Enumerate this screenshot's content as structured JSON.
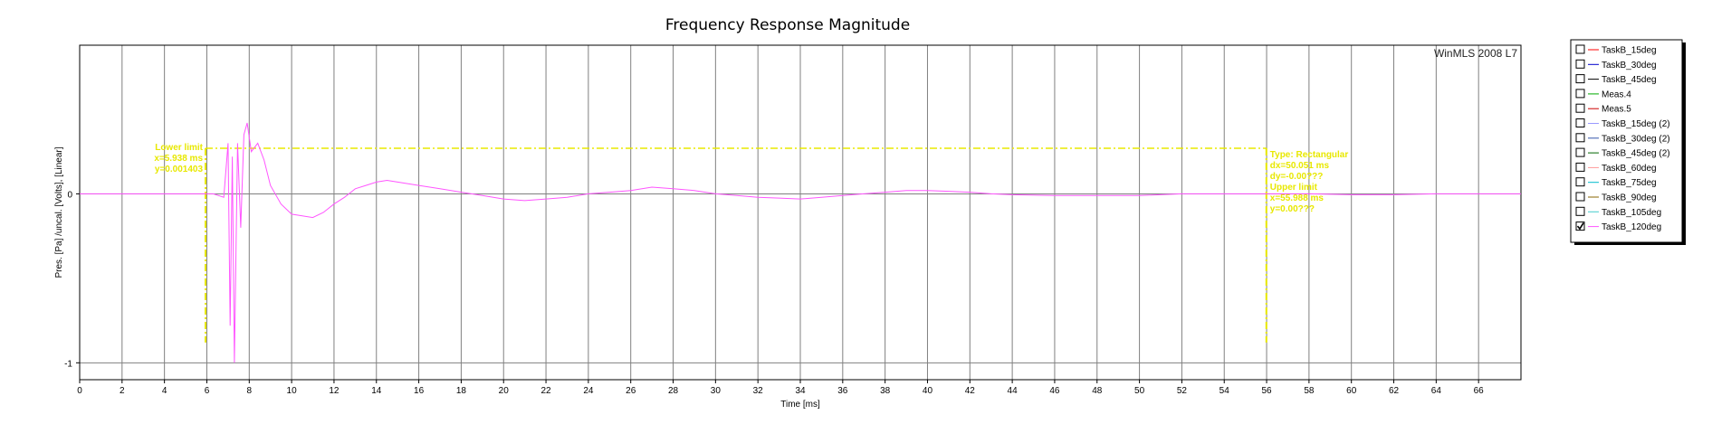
{
  "chart_data": {
    "type": "line",
    "title": "Frequency Response Magnitude",
    "xlabel": "Time [ms]",
    "ylabel": "Pres. [Pa] /uncal. [Volts], [Linear]",
    "xlim": [
      0,
      68
    ],
    "ylim": [
      -1.1,
      0.88
    ],
    "xticks": [
      0,
      2,
      4,
      6,
      8,
      10,
      12,
      14,
      16,
      18,
      20,
      22,
      24,
      26,
      28,
      30,
      32,
      34,
      36,
      38,
      40,
      42,
      44,
      46,
      48,
      50,
      52,
      54,
      56,
      58,
      60,
      62,
      64,
      66
    ],
    "xtick_labels": [
      "0",
      "2",
      "4",
      "6",
      "8",
      "10",
      "12",
      "14",
      "16",
      "18",
      "20",
      "22",
      "24",
      "26",
      "28",
      "30",
      "32",
      "34",
      "36",
      "38",
      "40",
      "42",
      "44",
      "46",
      "48",
      "50",
      "52",
      "54",
      "56",
      "58",
      "60",
      "62",
      "64",
      "66"
    ],
    "yticks": [
      0,
      -1
    ],
    "ytick_labels": [
      "0",
      "-1"
    ],
    "grid": true,
    "watermark": "WinMLS 2008 L7",
    "legend_position": "right",
    "series": [
      {
        "name": "TaskB_15deg",
        "color": "#ff0000",
        "checked": false
      },
      {
        "name": "TaskB_30deg",
        "color": "#0000cc",
        "checked": false
      },
      {
        "name": "TaskB_45deg",
        "color": "#000000",
        "checked": false
      },
      {
        "name": "Meas.4",
        "color": "#00aa00",
        "checked": false
      },
      {
        "name": "Meas.5",
        "color": "#cc0000",
        "checked": false
      },
      {
        "name": "TaskB_15deg (2)",
        "color": "#9999ff",
        "checked": false
      },
      {
        "name": "TaskB_30deg (2)",
        "color": "#3355aa",
        "checked": false
      },
      {
        "name": "TaskB_45deg (2)",
        "color": "#006600",
        "checked": false
      },
      {
        "name": "TaskB_60deg",
        "color": "#ff9999",
        "checked": false
      },
      {
        "name": "TaskB_75deg",
        "color": "#00bbcc",
        "checked": false
      },
      {
        "name": "TaskB_90deg",
        "color": "#886600",
        "checked": false
      },
      {
        "name": "TaskB_105deg",
        "color": "#44cccc",
        "checked": false
      },
      {
        "name": "TaskB_120deg",
        "color": "#ff55ff",
        "checked": true,
        "points": [
          [
            0,
            0
          ],
          [
            5,
            0
          ],
          [
            6.3,
            0
          ],
          [
            6.8,
            -0.02
          ],
          [
            7.0,
            0.3
          ],
          [
            7.1,
            -0.78
          ],
          [
            7.2,
            0.22
          ],
          [
            7.3,
            -1.0
          ],
          [
            7.45,
            0.3
          ],
          [
            7.6,
            -0.2
          ],
          [
            7.75,
            0.35
          ],
          [
            7.9,
            0.42
          ],
          [
            8.1,
            0.25
          ],
          [
            8.4,
            0.3
          ],
          [
            8.7,
            0.2
          ],
          [
            9.0,
            0.05
          ],
          [
            9.5,
            -0.06
          ],
          [
            10,
            -0.12
          ],
          [
            10.5,
            -0.13
          ],
          [
            11,
            -0.14
          ],
          [
            11.5,
            -0.11
          ],
          [
            12,
            -0.06
          ],
          [
            12.5,
            -0.02
          ],
          [
            13,
            0.03
          ],
          [
            13.5,
            0.05
          ],
          [
            14,
            0.07
          ],
          [
            14.5,
            0.08
          ],
          [
            15,
            0.07
          ],
          [
            15.5,
            0.06
          ],
          [
            16,
            0.05
          ],
          [
            17,
            0.03
          ],
          [
            18,
            0.01
          ],
          [
            19,
            -0.01
          ],
          [
            20,
            -0.03
          ],
          [
            21,
            -0.04
          ],
          [
            22,
            -0.03
          ],
          [
            23,
            -0.02
          ],
          [
            24,
            0.0
          ],
          [
            25,
            0.01
          ],
          [
            26,
            0.02
          ],
          [
            27,
            0.04
          ],
          [
            28,
            0.03
          ],
          [
            29,
            0.02
          ],
          [
            30,
            0.0
          ],
          [
            31,
            -0.01
          ],
          [
            32,
            -0.02
          ],
          [
            33,
            -0.025
          ],
          [
            34,
            -0.03
          ],
          [
            35,
            -0.02
          ],
          [
            36,
            -0.01
          ],
          [
            37,
            0.0
          ],
          [
            38,
            0.01
          ],
          [
            39,
            0.02
          ],
          [
            40,
            0.02
          ],
          [
            41,
            0.015
          ],
          [
            42,
            0.01
          ],
          [
            43,
            0.0
          ],
          [
            44,
            -0.005
          ],
          [
            46,
            -0.01
          ],
          [
            48,
            -0.01
          ],
          [
            50,
            -0.01
          ],
          [
            52,
            0.0
          ],
          [
            54,
            0.0
          ],
          [
            56,
            0.0
          ],
          [
            58,
            0.0
          ],
          [
            60,
            -0.005
          ],
          [
            62,
            -0.005
          ],
          [
            64,
            0.0
          ],
          [
            66,
            0.0
          ],
          [
            68,
            0.0
          ]
        ]
      }
    ],
    "cursor": {
      "left_x": 5.938,
      "right_x": 55.988,
      "top_y": 0.27,
      "bottom_y": -0.88,
      "color": "#e8e800"
    },
    "annotations": {
      "left": [
        "Lower limit",
        "x=5.938 ms",
        "y=0.001403"
      ],
      "right": [
        "Type: Rectangular",
        "dx=50.051 ms",
        "dy=-0.00???",
        "Upper limit",
        "x=55.988 ms",
        "y=0.00???"
      ]
    }
  }
}
